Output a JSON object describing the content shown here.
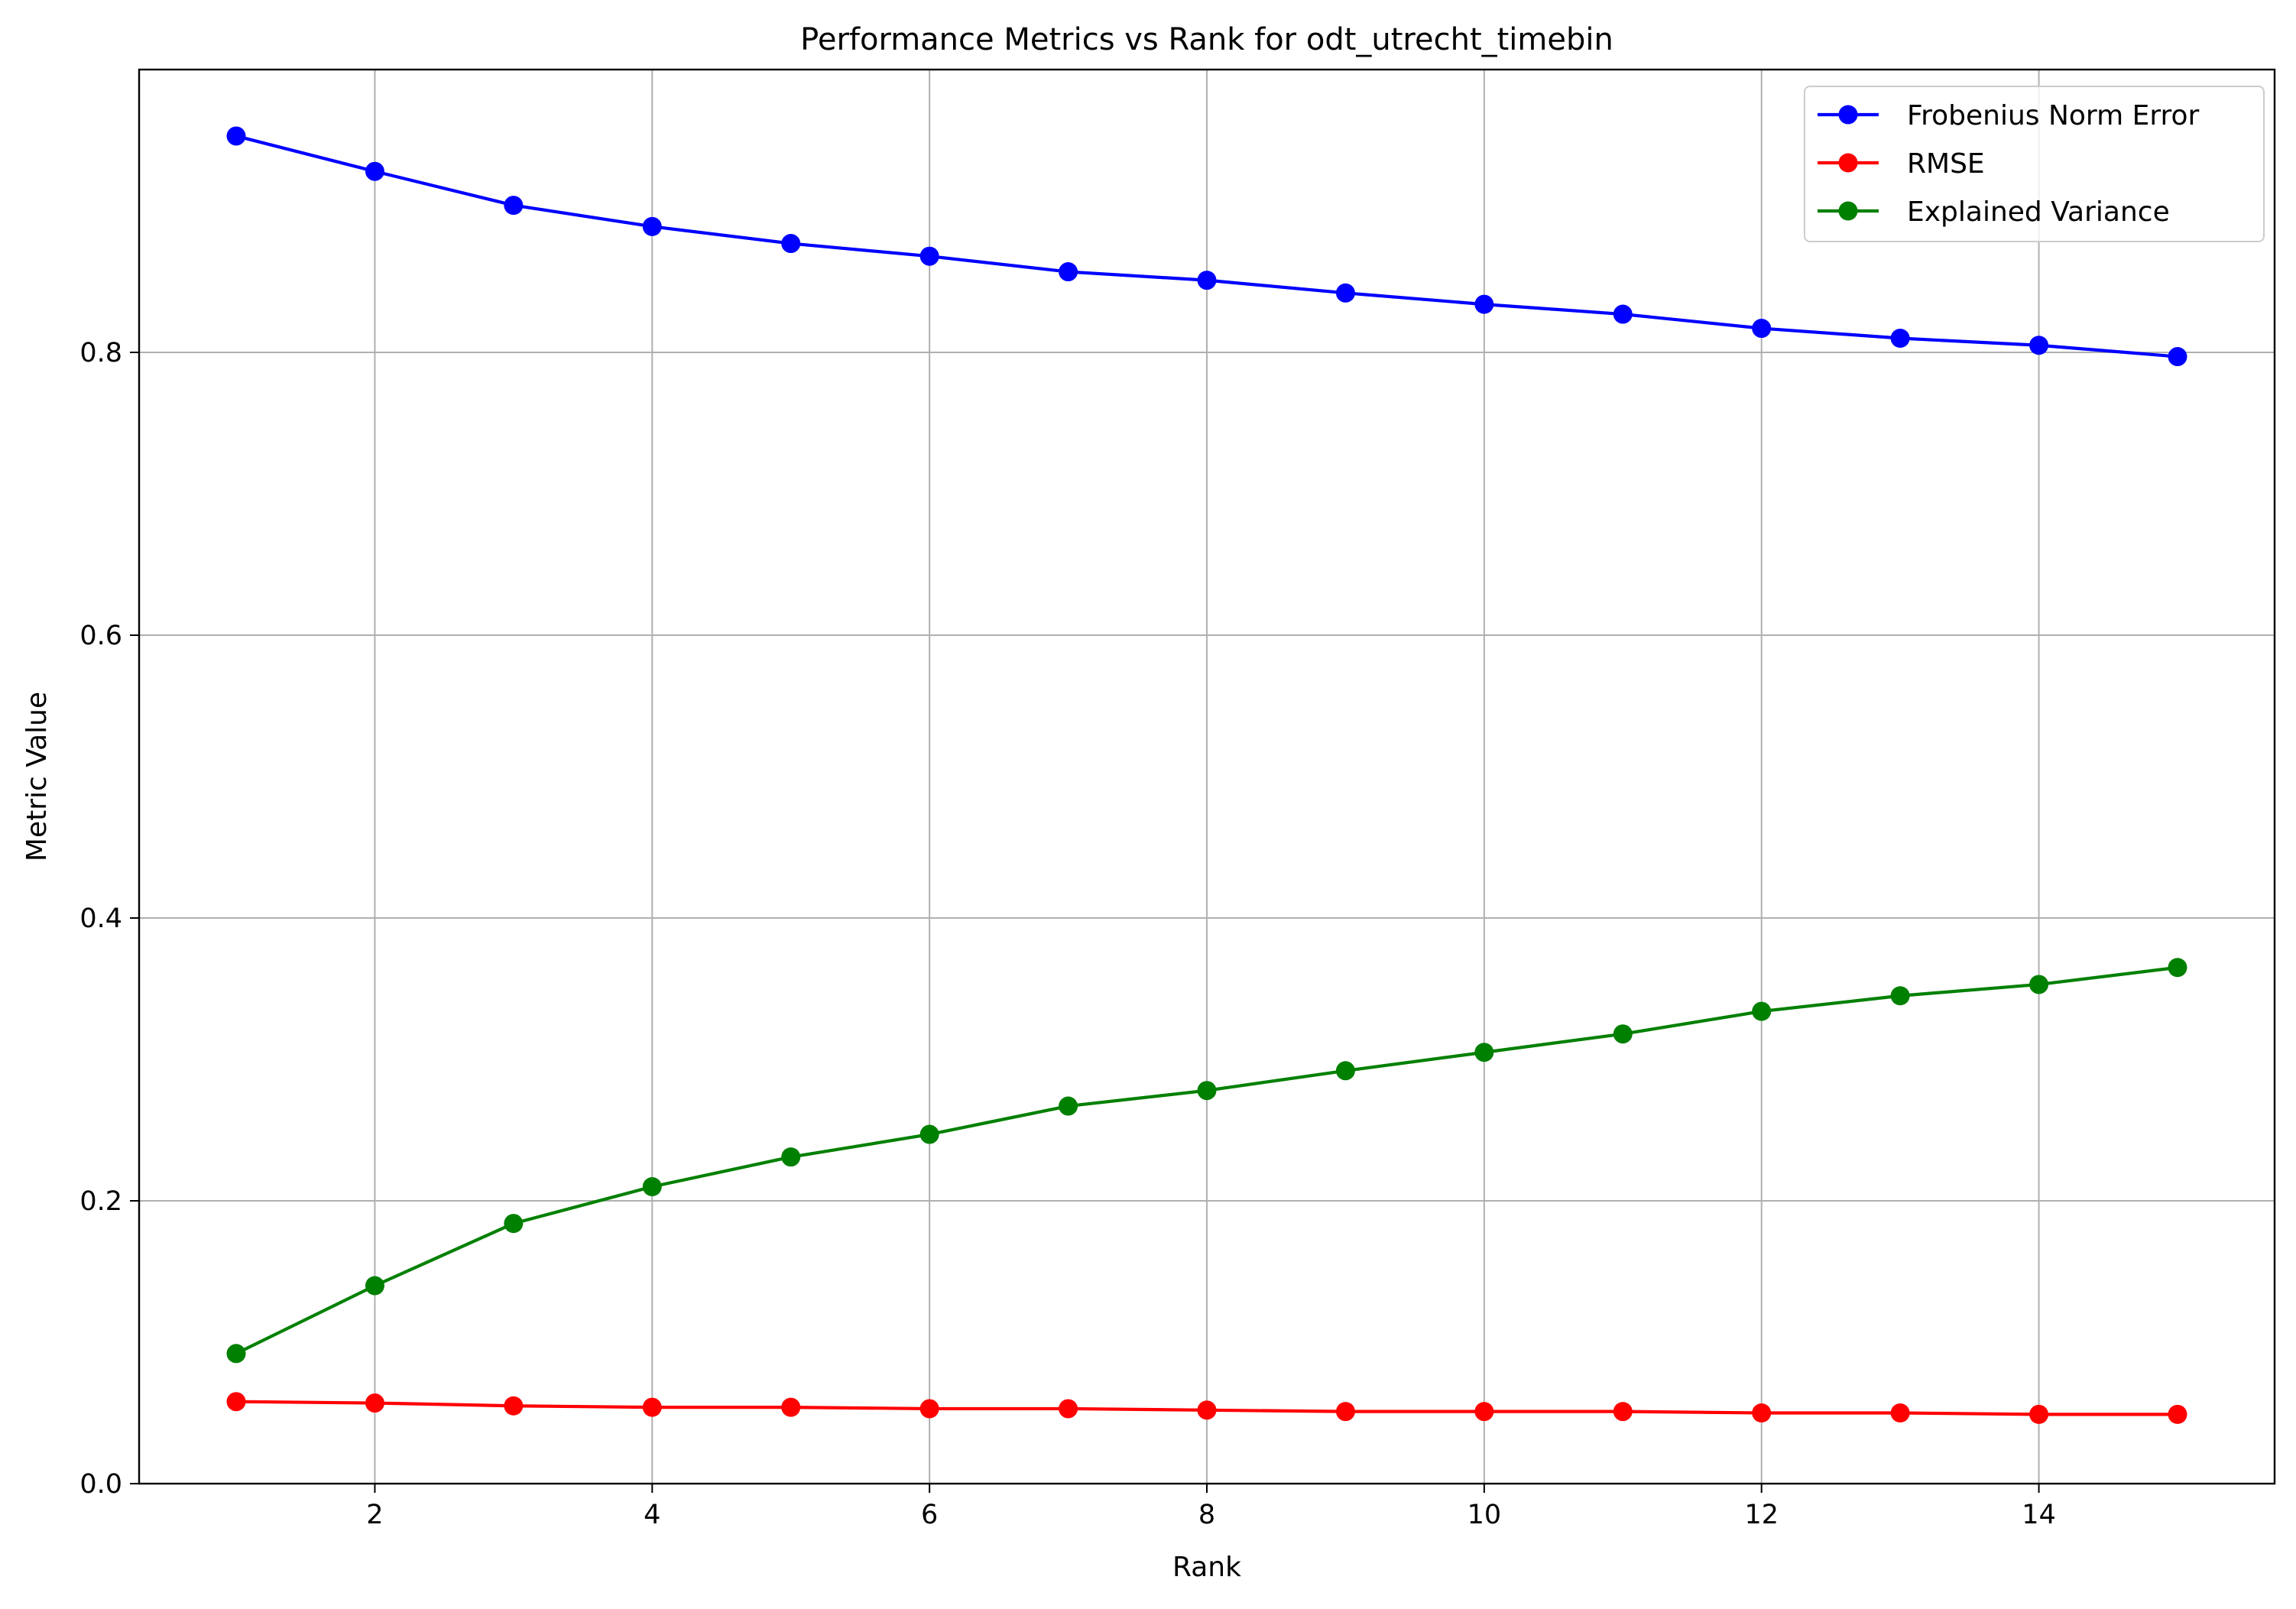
{
  "chart_data": {
    "type": "line",
    "title": "Performance Metrics vs Rank for odt_utrecht_timebin",
    "xlabel": "Rank",
    "ylabel": "Metric Value",
    "xlim": [
      0.3,
      15.7
    ],
    "ylim": [
      0.0,
      1.0
    ],
    "x_ticks": [
      2,
      4,
      6,
      8,
      10,
      12,
      14
    ],
    "x_tick_labels": [
      "2",
      "4",
      "6",
      "8",
      "10",
      "12",
      "14"
    ],
    "y_ticks": [
      0.0,
      0.2,
      0.4,
      0.6,
      0.8
    ],
    "y_tick_labels": [
      "0.0",
      "0.2",
      "0.4",
      "0.6",
      "0.8"
    ],
    "grid": true,
    "legend_position": "top-right",
    "x": [
      1,
      2,
      3,
      4,
      5,
      6,
      7,
      8,
      9,
      10,
      11,
      12,
      13,
      14,
      15
    ],
    "series": [
      {
        "name": "Frobenius Norm Error",
        "color": "#0000ff",
        "values": [
          0.953,
          0.928,
          0.904,
          0.889,
          0.877,
          0.868,
          0.857,
          0.851,
          0.842,
          0.834,
          0.827,
          0.817,
          0.81,
          0.805,
          0.797
        ]
      },
      {
        "name": "RMSE",
        "color": "#ff0000",
        "values": [
          0.058,
          0.057,
          0.055,
          0.054,
          0.054,
          0.053,
          0.053,
          0.052,
          0.051,
          0.051,
          0.051,
          0.05,
          0.05,
          0.049,
          0.049
        ]
      },
      {
        "name": "Explained Variance",
        "color": "#008000",
        "values": [
          0.092,
          0.14,
          0.184,
          0.21,
          0.231,
          0.247,
          0.267,
          0.278,
          0.292,
          0.305,
          0.318,
          0.334,
          0.345,
          0.353,
          0.365
        ]
      }
    ]
  }
}
